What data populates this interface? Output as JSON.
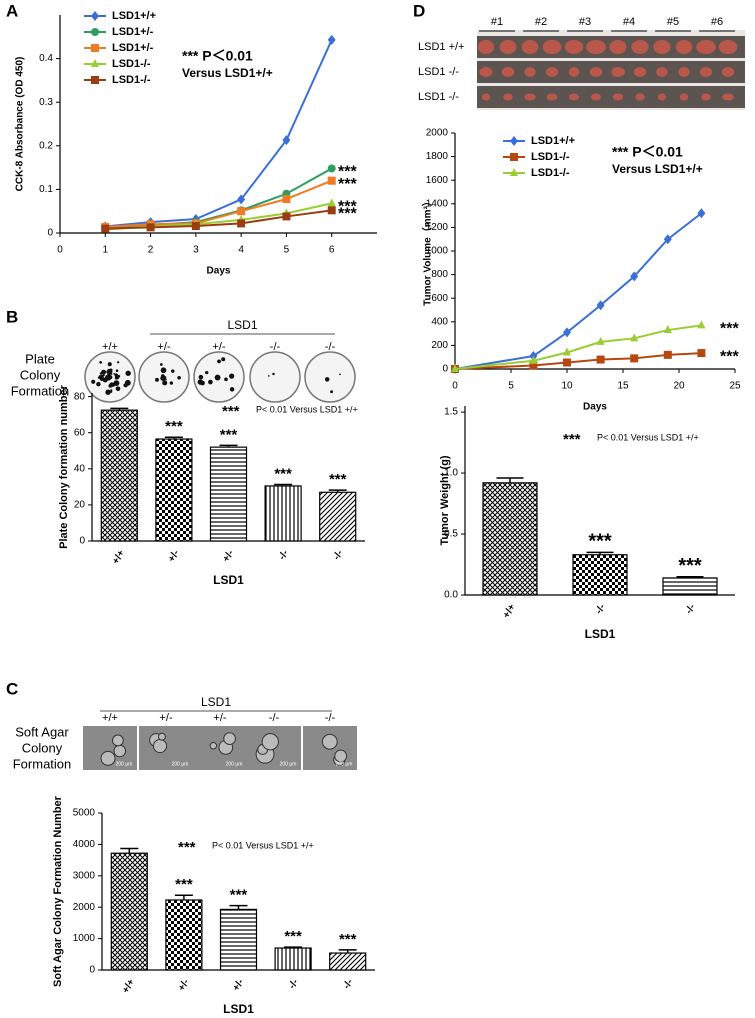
{
  "panel_labels": [
    "A",
    "B",
    "C",
    "D"
  ],
  "plate_panel": {
    "title": "LSD1",
    "labels": [
      "+/+",
      "+/-",
      "+/-",
      "-/-",
      "-/-"
    ],
    "row_label": [
      "Plate",
      "Colony",
      "Formation"
    ]
  },
  "agar_panel": {
    "title": "LSD1",
    "labels": [
      "+/+",
      "+/-",
      "+/-",
      "-/-",
      "-/-"
    ],
    "row_label": [
      "Soft Agar",
      "Colony",
      "Formation"
    ],
    "scale_label": "200 μm"
  },
  "tumor_photo": {
    "columns": [
      "#1",
      "#2",
      "#3",
      "#4",
      "#5",
      "#6"
    ],
    "rows": [
      "LSD1 +/+",
      "LSD1 -/-",
      "LSD1 -/-"
    ]
  },
  "chart_data": [
    {
      "type": "line",
      "xlabel": "Days",
      "ylabel": "CCK-8 Absorbance (OD 450)",
      "xlim": [
        0,
        7
      ],
      "xticks": [
        0,
        1,
        2,
        3,
        4,
        5,
        6
      ],
      "ylim": [
        0,
        0.5
      ],
      "yticks": [
        0,
        0.1,
        0.2,
        0.3,
        0.4
      ],
      "x": [
        1,
        2,
        3,
        4,
        5,
        6
      ],
      "series": [
        {
          "name": "LSD1+/+",
          "color": "#3a6fd8",
          "marker": "diamond",
          "values": [
            0.015,
            0.025,
            0.032,
            0.077,
            0.213,
            0.443
          ]
        },
        {
          "name": "LSD1+/-",
          "color": "#2e9e5f",
          "marker": "circle",
          "values": [
            0.012,
            0.018,
            0.025,
            0.052,
            0.09,
            0.148
          ],
          "significance": "***"
        },
        {
          "name": "LSD1+/-",
          "color": "#f07b22",
          "marker": "square",
          "values": [
            0.014,
            0.02,
            0.022,
            0.05,
            0.078,
            0.12
          ],
          "significance": "***"
        },
        {
          "name": "LSD1-/-",
          "color": "#9acd32",
          "marker": "triangle",
          "values": [
            0.008,
            0.015,
            0.02,
            0.03,
            0.045,
            0.068
          ],
          "significance": "***"
        },
        {
          "name": "LSD1-/-",
          "color": "#9b3d12",
          "marker": "square",
          "values": [
            0.01,
            0.013,
            0.016,
            0.022,
            0.038,
            0.052
          ],
          "significance": "***"
        }
      ],
      "annotations": [
        "*** P＜0.01",
        "Versus LSD1+/+"
      ]
    },
    {
      "type": "bar",
      "xlabel": "LSD1",
      "ylabel": "Plate Colony formation number",
      "categories": [
        "+/+",
        "+/-",
        "+/-",
        "-/-",
        "-/-"
      ],
      "values": [
        72.5,
        56.5,
        52,
        30.5,
        27
      ],
      "errors": [
        1,
        1,
        1,
        0.8,
        1.2
      ],
      "significance": [
        null,
        "***",
        "***",
        "***",
        "***"
      ],
      "ylim": [
        0,
        82
      ],
      "yticks": [
        0,
        20,
        40,
        60,
        80
      ],
      "annotations": [
        "***",
        "P< 0.01 Versus LSD1 +/+"
      ]
    },
    {
      "type": "bar",
      "xlabel": "LSD1",
      "ylabel": "Soft Agar Colony Formation Number",
      "categories": [
        "+/+",
        "+/-",
        "+/-",
        "-/-",
        "-/-"
      ],
      "values": [
        3720,
        2230,
        1930,
        700,
        540
      ],
      "errors": [
        150,
        150,
        120,
        30,
        100
      ],
      "significance": [
        null,
        "***",
        "***",
        "***",
        "***"
      ],
      "ylim": [
        0,
        5000
      ],
      "yticks": [
        0,
        1000,
        2000,
        3000,
        4000,
        5000
      ],
      "annotations": [
        "***",
        "P< 0.01 Versus LSD1 +/+"
      ]
    },
    {
      "type": "line",
      "xlabel": "Days",
      "ylabel": "Tumor Volume（mm³）",
      "xlim": [
        0,
        25
      ],
      "xticks": [
        0,
        5,
        10,
        15,
        20,
        25
      ],
      "ylim": [
        0,
        2000
      ],
      "yticks": [
        0,
        200,
        400,
        600,
        800,
        1000,
        1200,
        1400,
        1600,
        1800,
        2000
      ],
      "x": [
        0,
        7,
        10,
        13,
        16,
        19,
        22
      ],
      "series": [
        {
          "name": "LSD1+/+",
          "color": "#3a6fd8",
          "marker": "diamond",
          "values": [
            0,
            110,
            310,
            540,
            785,
            1100,
            1320
          ]
        },
        {
          "name": "LSD1-/-",
          "color": "#b5470f",
          "marker": "square",
          "values": [
            0,
            30,
            55,
            80,
            90,
            120,
            135
          ],
          "significance": "***"
        },
        {
          "name": "LSD1-/-",
          "color": "#9acd32",
          "marker": "triangle",
          "values": [
            0,
            70,
            140,
            230,
            260,
            330,
            370
          ],
          "significance": "***"
        }
      ],
      "annotations": [
        "*** P＜0.01",
        "Versus LSD1+/+"
      ]
    },
    {
      "type": "bar",
      "xlabel": "LSD1",
      "ylabel": "Tumor Weight (g)",
      "categories": [
        "+/+",
        "-/-",
        "-/-"
      ],
      "values": [
        0.92,
        0.33,
        0.14
      ],
      "errors": [
        0.04,
        0.02,
        0.01
      ],
      "significance": [
        null,
        "***",
        "***"
      ],
      "ylim": [
        0,
        1.55
      ],
      "yticks": [
        {
          "value": 0,
          "label": "0.0"
        },
        0.5,
        {
          "value": 1,
          "label": "1.0"
        },
        1.5
      ],
      "annotations": [
        "***",
        "P< 0.01 Versus LSD1 +/+"
      ]
    }
  ]
}
